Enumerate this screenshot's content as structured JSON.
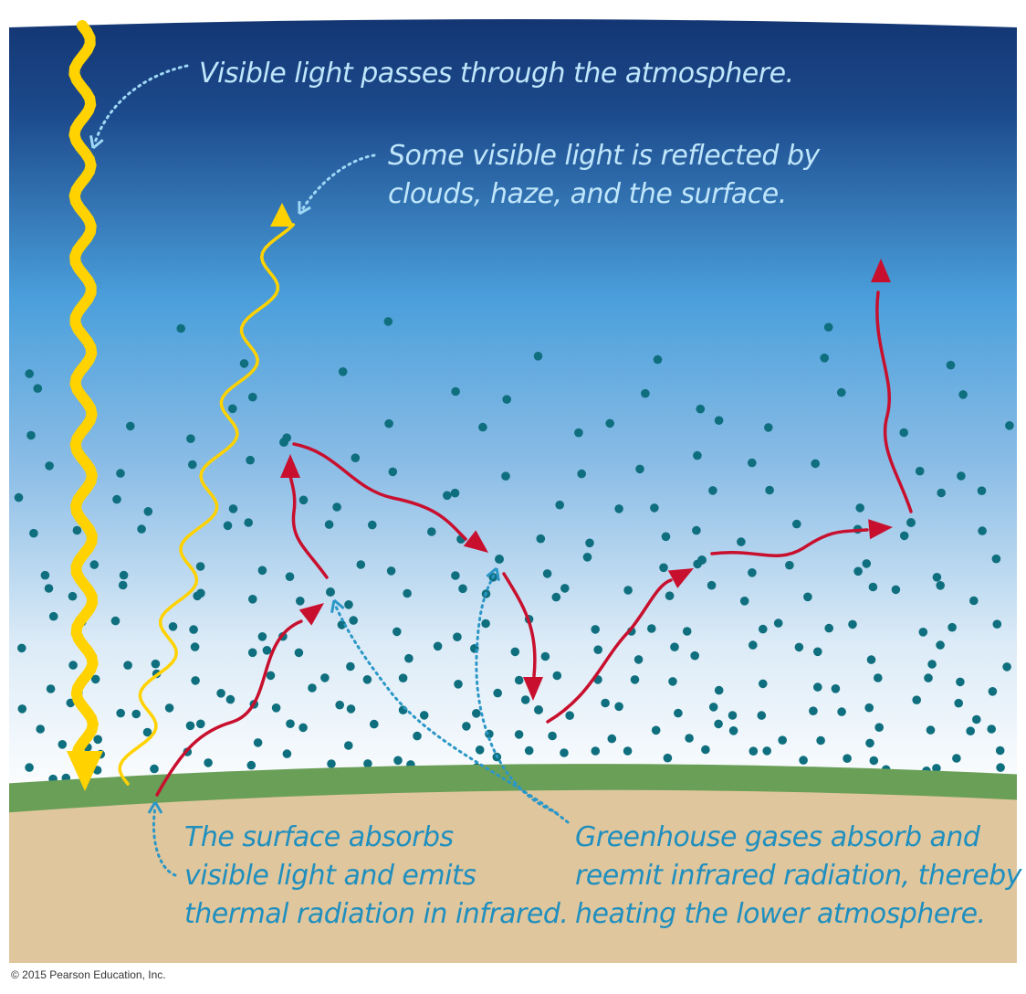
{
  "captions": {
    "visible_light": "Visible light passes through the atmosphere.",
    "reflected_line1": "Some visible light is reflected by",
    "reflected_line2": "clouds, haze, and the surface.",
    "surface_line1": "The surface absorbs",
    "surface_line2": "visible light and emits",
    "surface_line3": "thermal radiation in infrared.",
    "ghg_line1": "Greenhouse gases absorb and",
    "ghg_line2": "reemit infrared radiation, thereby",
    "ghg_line3": "heating the lower atmosphere."
  },
  "copyright": "© 2015 Pearson Education, Inc.",
  "colors": {
    "sky_top": "#12326e",
    "sky_mid": "#4a9fdb",
    "sky_bottom": "#ffffff",
    "ground_green": "#6a9f58",
    "ground_sand": "#e0c69c",
    "visible_light": "#ffd200",
    "infrared": "#c8102e",
    "molecule": "#0f6f7e",
    "pointer_light": "#9fd8f6",
    "pointer_dark": "#2b97c7"
  }
}
